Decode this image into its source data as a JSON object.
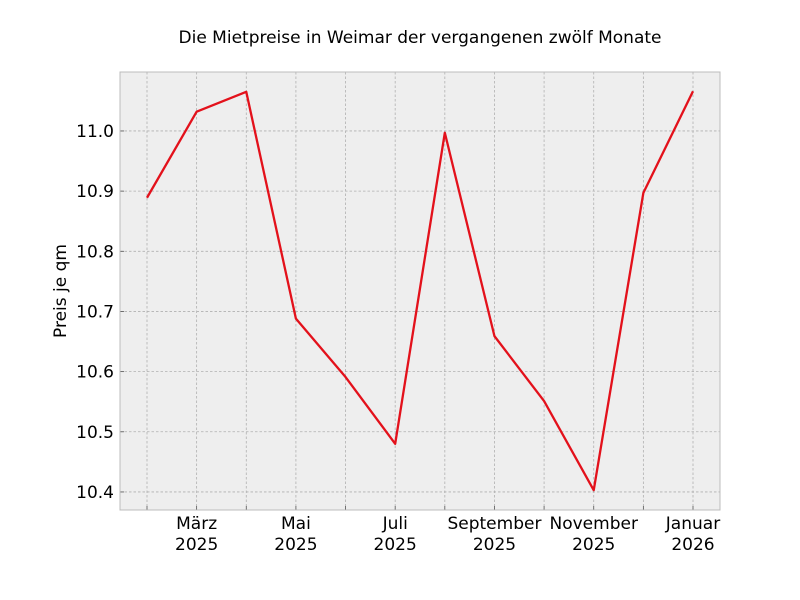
{
  "chart_data": {
    "type": "line",
    "title": "Die Mietpreise in Weimar der vergangenen zwölf Monate",
    "xlabel": "",
    "ylabel": "Preis je qm",
    "x": [
      "2025-02",
      "2025-03",
      "2025-04",
      "2025-05",
      "2025-06",
      "2025-07",
      "2025-08",
      "2025-09",
      "2025-10",
      "2025-11",
      "2025-12",
      "2026-01"
    ],
    "series": [
      {
        "values": [
          10.889,
          11.032,
          11.065,
          10.688,
          10.591,
          10.48,
          10.997,
          10.659,
          10.551,
          10.403,
          10.897,
          11.066
        ],
        "color": "#e3111b"
      }
    ],
    "ylim": [
      10.37,
      11.098
    ],
    "yticks": [
      "10.4",
      "10.5",
      "10.6",
      "10.7",
      "10.8",
      "10.9",
      "11.0"
    ],
    "xtick_labels": [
      {
        "month": "2025-03",
        "line1": "März",
        "line2": "2025"
      },
      {
        "month": "2025-05",
        "line1": "Mai",
        "line2": "2025"
      },
      {
        "month": "2025-07",
        "line1": "Juli",
        "line2": "2025"
      },
      {
        "month": "2025-09",
        "line1": "September",
        "line2": "2025"
      },
      {
        "month": "2025-11",
        "line1": "November",
        "line2": "2025"
      },
      {
        "month": "2026-01",
        "line1": "Januar",
        "line2": "2026"
      }
    ],
    "grid": true,
    "background": "#eeeeee"
  }
}
